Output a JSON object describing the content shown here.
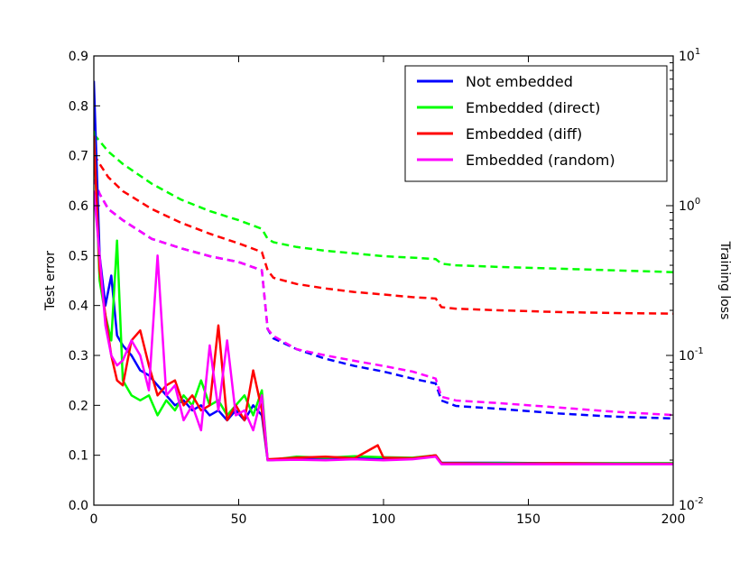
{
  "chart_data": {
    "type": "line",
    "xlabel": "",
    "ylabel_left": "Test error",
    "ylabel_right": "Training loss",
    "xlim": [
      0,
      200
    ],
    "ylim_left": [
      0.0,
      0.9
    ],
    "ylim_right": [
      0.01,
      10
    ],
    "yscale_right": "log",
    "grid": false,
    "legend_position": "top-right",
    "x_ticks": [
      "0",
      "50",
      "100",
      "150",
      "200"
    ],
    "y_left_ticks": [
      "0.0",
      "0.1",
      "0.2",
      "0.3",
      "0.4",
      "0.5",
      "0.6",
      "0.7",
      "0.8",
      "0.9"
    ],
    "y_right_ticks": [
      {
        "base": "10",
        "exp": "-2",
        "value": 0.01
      },
      {
        "base": "10",
        "exp": "-1",
        "value": 0.1
      },
      {
        "base": "10",
        "exp": "0",
        "value": 1
      },
      {
        "base": "10",
        "exp": "1",
        "value": 10
      }
    ],
    "legend": [
      {
        "label": "Not embedded",
        "color": "#0000ff"
      },
      {
        "label": "Embedded (direct)",
        "color": "#00ff00"
      },
      {
        "label": "Embedded (diff)",
        "color": "#ff0000"
      },
      {
        "label": "Embedded (random)",
        "color": "#ff00ff"
      }
    ],
    "test_error_series": [
      {
        "name": "Not embedded",
        "color": "#0000ff",
        "style": "solid",
        "x": [
          0,
          2,
          4,
          6,
          8,
          10,
          13,
          16,
          19,
          22,
          25,
          28,
          31,
          34,
          37,
          40,
          43,
          46,
          49,
          52,
          55,
          58,
          60,
          70,
          80,
          90,
          100,
          110,
          118,
          120,
          140,
          160,
          180,
          200
        ],
        "y": [
          0.85,
          0.5,
          0.4,
          0.46,
          0.34,
          0.32,
          0.3,
          0.27,
          0.26,
          0.24,
          0.22,
          0.2,
          0.21,
          0.19,
          0.2,
          0.18,
          0.19,
          0.17,
          0.19,
          0.17,
          0.2,
          0.18,
          0.09,
          0.093,
          0.092,
          0.094,
          0.092,
          0.093,
          0.1,
          0.085,
          0.085,
          0.084,
          0.084,
          0.084
        ]
      },
      {
        "name": "Embedded (direct)",
        "color": "#00ff00",
        "style": "solid",
        "x": [
          0,
          2,
          4,
          6,
          8,
          10,
          13,
          16,
          19,
          22,
          25,
          28,
          31,
          34,
          37,
          40,
          43,
          46,
          49,
          52,
          55,
          58,
          60,
          70,
          80,
          90,
          100,
          110,
          118,
          120,
          140,
          160,
          180,
          200
        ],
        "y": [
          0.75,
          0.45,
          0.38,
          0.33,
          0.53,
          0.25,
          0.22,
          0.21,
          0.22,
          0.18,
          0.21,
          0.19,
          0.22,
          0.2,
          0.25,
          0.2,
          0.21,
          0.18,
          0.2,
          0.22,
          0.18,
          0.23,
          0.09,
          0.097,
          0.095,
          0.098,
          0.096,
          0.095,
          0.1,
          0.084,
          0.084,
          0.084,
          0.084,
          0.084
        ]
      },
      {
        "name": "Embedded (diff)",
        "color": "#ff0000",
        "style": "solid",
        "x": [
          0,
          2,
          4,
          6,
          8,
          10,
          13,
          16,
          19,
          22,
          25,
          28,
          31,
          34,
          37,
          40,
          43,
          46,
          49,
          52,
          55,
          58,
          60,
          70,
          80,
          90,
          98,
          100,
          110,
          118,
          120,
          140,
          160,
          180,
          200
        ],
        "y": [
          0.74,
          0.47,
          0.38,
          0.3,
          0.25,
          0.24,
          0.33,
          0.35,
          0.28,
          0.22,
          0.24,
          0.25,
          0.2,
          0.22,
          0.19,
          0.2,
          0.36,
          0.17,
          0.2,
          0.17,
          0.27,
          0.19,
          0.092,
          0.095,
          0.097,
          0.094,
          0.12,
          0.095,
          0.094,
          0.1,
          0.084,
          0.083,
          0.084,
          0.083,
          0.083
        ]
      },
      {
        "name": "Embedded (random)",
        "color": "#ff00ff",
        "style": "solid",
        "x": [
          0,
          2,
          4,
          6,
          8,
          10,
          13,
          16,
          19,
          22,
          25,
          28,
          31,
          34,
          37,
          40,
          43,
          46,
          49,
          52,
          55,
          58,
          60,
          70,
          80,
          90,
          100,
          110,
          118,
          120,
          140,
          160,
          180,
          200
        ],
        "y": [
          0.63,
          0.5,
          0.36,
          0.3,
          0.28,
          0.29,
          0.33,
          0.3,
          0.23,
          0.5,
          0.22,
          0.24,
          0.17,
          0.2,
          0.15,
          0.32,
          0.19,
          0.33,
          0.18,
          0.19,
          0.15,
          0.22,
          0.09,
          0.091,
          0.09,
          0.092,
          0.09,
          0.092,
          0.097,
          0.082,
          0.082,
          0.082,
          0.082,
          0.082
        ]
      }
    ],
    "training_loss_series": [
      {
        "name": "Not embedded",
        "color": "#0000ff",
        "style": "dashed",
        "x": [
          0,
          2,
          5,
          10,
          20,
          30,
          40,
          50,
          58,
          60,
          62,
          70,
          80,
          90,
          100,
          110,
          118,
          120,
          125,
          140,
          160,
          180,
          200
        ],
        "y": [
          1.5,
          1.2,
          0.95,
          0.8,
          0.6,
          0.52,
          0.46,
          0.42,
          0.37,
          0.15,
          0.13,
          0.11,
          0.095,
          0.085,
          0.078,
          0.07,
          0.065,
          0.05,
          0.046,
          0.044,
          0.041,
          0.039,
          0.038
        ]
      },
      {
        "name": "Embedded (direct)",
        "color": "#00ff00",
        "style": "dashed",
        "x": [
          0,
          2,
          5,
          10,
          20,
          30,
          40,
          50,
          58,
          60,
          62,
          70,
          80,
          90,
          100,
          110,
          118,
          120,
          125,
          140,
          160,
          180,
          200
        ],
        "y": [
          3.0,
          2.7,
          2.3,
          1.9,
          1.4,
          1.1,
          0.92,
          0.8,
          0.7,
          0.6,
          0.57,
          0.53,
          0.5,
          0.48,
          0.46,
          0.45,
          0.44,
          0.41,
          0.4,
          0.39,
          0.38,
          0.37,
          0.36
        ]
      },
      {
        "name": "Embedded (diff)",
        "color": "#ff0000",
        "style": "dashed",
        "x": [
          0,
          2,
          5,
          10,
          20,
          30,
          40,
          50,
          58,
          60,
          62,
          70,
          80,
          90,
          100,
          110,
          118,
          120,
          125,
          140,
          160,
          180,
          200
        ],
        "y": [
          2.2,
          1.9,
          1.55,
          1.25,
          0.95,
          0.77,
          0.65,
          0.56,
          0.49,
          0.37,
          0.33,
          0.3,
          0.28,
          0.265,
          0.255,
          0.245,
          0.24,
          0.21,
          0.205,
          0.2,
          0.195,
          0.192,
          0.19
        ]
      },
      {
        "name": "Embedded (random)",
        "color": "#ff00ff",
        "style": "dashed",
        "x": [
          0,
          2,
          5,
          10,
          20,
          30,
          40,
          50,
          58,
          60,
          62,
          70,
          80,
          90,
          100,
          110,
          118,
          120,
          125,
          140,
          160,
          180,
          200
        ],
        "y": [
          1.5,
          1.2,
          0.95,
          0.8,
          0.6,
          0.52,
          0.46,
          0.42,
          0.37,
          0.15,
          0.135,
          0.11,
          0.1,
          0.092,
          0.085,
          0.078,
          0.07,
          0.053,
          0.05,
          0.048,
          0.045,
          0.042,
          0.04
        ]
      }
    ]
  }
}
